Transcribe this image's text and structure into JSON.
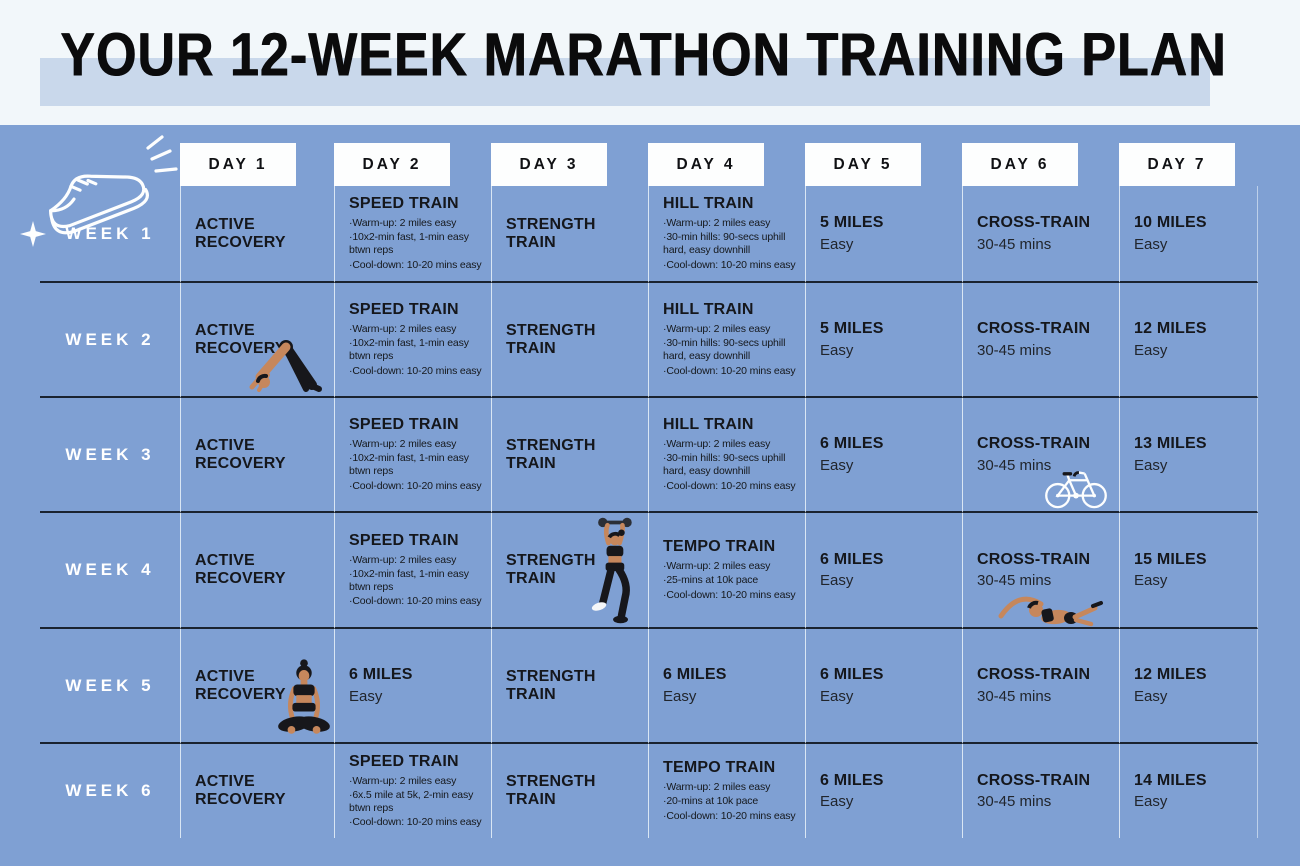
{
  "title": "YOUR 12-WEEK MARATHON TRAINING PLAN",
  "colors": {
    "background_blue": "#7fa0d3",
    "header_background": "#f2f7fa",
    "title_highlight": "#c9d8eb",
    "day_box_background": "#fdfefe",
    "text_dark": "#15171c",
    "week_label_color": "#ffffff",
    "row_divider": "#1a2330",
    "column_divider": "#eef5fb",
    "skin_tone": "#c6875c",
    "outfit_black": "#17171b"
  },
  "decor": {
    "corner_icon": "running-shoe-icon",
    "corner_sparkle": "sparkle-icon"
  },
  "table": {
    "day_headers": [
      "DAY 1",
      "DAY 2",
      "DAY 3",
      "DAY 4",
      "DAY 5",
      "DAY 6",
      "DAY 7"
    ],
    "weeks": [
      {
        "label": "WEEK 1",
        "days": [
          {
            "title": "ACTIVE RECOVERY"
          },
          {
            "title": "SPEED TRAIN",
            "details": [
              "·Warm-up: 2 miles easy",
              "·10x2-min fast, 1-min easy btwn reps",
              "·Cool-down: 10-20 mins easy"
            ]
          },
          {
            "title": "STRENGTH TRAIN"
          },
          {
            "title": "HILL TRAIN",
            "details": [
              "·Warm-up: 2 miles easy",
              "·30-min hills: 90-secs uphill hard, easy downhill",
              "·Cool-down: 10-20 mins easy"
            ]
          },
          {
            "title": "5 MILES",
            "sub": "Easy"
          },
          {
            "title": "CROSS-TRAIN",
            "sub": "30-45 mins"
          },
          {
            "title": "10 MILES",
            "sub": "Easy"
          }
        ]
      },
      {
        "label": "WEEK 2",
        "days": [
          {
            "title": "ACTIVE RECOVERY",
            "icon": "downward-dog-illustration"
          },
          {
            "title": "SPEED TRAIN",
            "details": [
              "·Warm-up: 2 miles easy",
              "·10x2-min fast, 1-min easy btwn reps",
              "·Cool-down: 10-20 mins easy"
            ]
          },
          {
            "title": "STRENGTH TRAIN"
          },
          {
            "title": "HILL TRAIN",
            "details": [
              "·Warm-up: 2 miles easy",
              "·30-min hills: 90-secs uphill hard, easy downhill",
              "·Cool-down: 10-20 mins easy"
            ]
          },
          {
            "title": "5 MILES",
            "sub": "Easy"
          },
          {
            "title": "CROSS-TRAIN",
            "sub": "30-45 mins"
          },
          {
            "title": "12 MILES",
            "sub": "Easy"
          }
        ]
      },
      {
        "label": "WEEK 3",
        "days": [
          {
            "title": "ACTIVE RECOVERY"
          },
          {
            "title": "SPEED TRAIN",
            "details": [
              "·Warm-up: 2 miles easy",
              "·10x2-min fast, 1-min easy btwn reps",
              "·Cool-down: 10-20 mins easy"
            ]
          },
          {
            "title": "STRENGTH TRAIN"
          },
          {
            "title": "HILL TRAIN",
            "details": [
              "·Warm-up: 2 miles easy",
              "·30-min hills: 90-secs uphill hard, easy downhill",
              "·Cool-down: 10-20 mins easy"
            ]
          },
          {
            "title": "6 MILES",
            "sub": "Easy"
          },
          {
            "title": "CROSS-TRAIN",
            "sub": "30-45 mins",
            "icon": "bicycle-illustration"
          },
          {
            "title": "13 MILES",
            "sub": "Easy"
          }
        ]
      },
      {
        "label": "WEEK 4",
        "days": [
          {
            "title": "ACTIVE RECOVERY"
          },
          {
            "title": "SPEED TRAIN",
            "details": [
              "·Warm-up: 2 miles easy",
              "·10x2-min fast, 1-min easy btwn reps",
              "·Cool-down: 10-20 mins easy"
            ]
          },
          {
            "title": "STRENGTH TRAIN",
            "icon": "dumbbell-lift-illustration"
          },
          {
            "title": "TEMPO TRAIN",
            "details": [
              "·Warm-up: 2 miles easy",
              "·25-mins at 10k pace",
              "·Cool-down: 10-20 mins easy"
            ]
          },
          {
            "title": "6 MILES",
            "sub": "Easy"
          },
          {
            "title": "CROSS-TRAIN",
            "sub": "30-45 mins",
            "icon": "swimmer-illustration"
          },
          {
            "title": "15 MILES",
            "sub": "Easy"
          }
        ]
      },
      {
        "label": "WEEK 5",
        "days": [
          {
            "title": "ACTIVE RECOVERY",
            "icon": "meditation-illustration"
          },
          {
            "title": "6 MILES",
            "sub": "Easy"
          },
          {
            "title": "STRENGTH TRAIN"
          },
          {
            "title": "6 MILES",
            "sub": "Easy"
          },
          {
            "title": "6 MILES",
            "sub": "Easy"
          },
          {
            "title": "CROSS-TRAIN",
            "sub": "30-45 mins"
          },
          {
            "title": "12 MILES",
            "sub": "Easy"
          }
        ]
      },
      {
        "label": "WEEK 6",
        "days": [
          {
            "title": "ACTIVE RECOVERY"
          },
          {
            "title": "SPEED TRAIN",
            "details": [
              "·Warm-up: 2 miles easy",
              "·6x.5 mile at 5k, 2-min easy btwn reps",
              "·Cool-down: 10-20 mins easy"
            ]
          },
          {
            "title": "STRENGTH TRAIN"
          },
          {
            "title": "TEMPO TRAIN",
            "details": [
              "·Warm-up: 2 miles easy",
              "·20-mins at 10k pace",
              "·Cool-down: 10-20 mins easy"
            ]
          },
          {
            "title": "6 MILES",
            "sub": "Easy"
          },
          {
            "title": "CROSS-TRAIN",
            "sub": "30-45 mins"
          },
          {
            "title": "14 MILES",
            "sub": "Easy"
          }
        ]
      }
    ]
  }
}
